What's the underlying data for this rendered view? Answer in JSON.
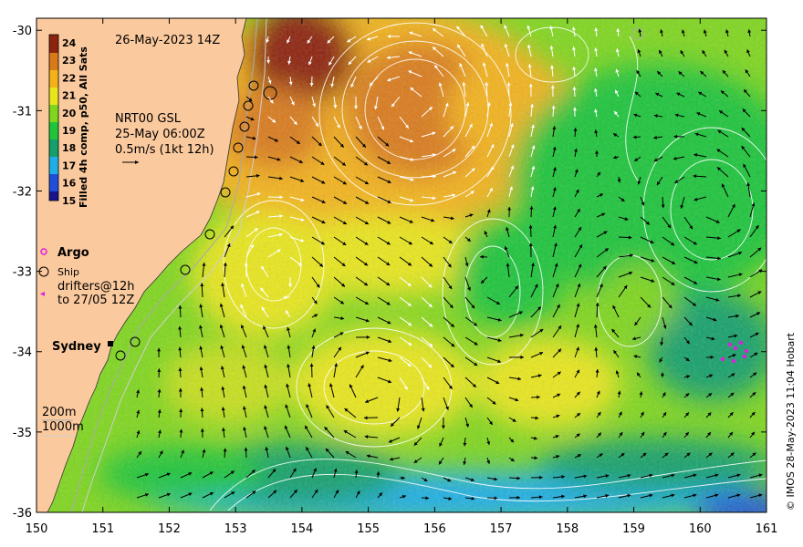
{
  "map": {
    "timestamp": "26-May-2023 14Z",
    "velocity_source": "NRT00 GSL",
    "velocity_time": "25-May 06:00Z",
    "arrow_scale": "0.5m/s (1kt 12h)",
    "legend": {
      "argo": "Argo",
      "ship": "Ship",
      "drifters_line1": "drifters@12h",
      "drifters_line2": "to 27/05 12Z"
    },
    "place_sydney": "Sydney",
    "isobath_200": "200m",
    "isobath_1000": "1000m",
    "credit": "© IMOS 28-May-2023 11:04 Hobart",
    "colorbar_title": "Filled 4h comp, p50, All Sats",
    "colorbar_ticks": [
      "24",
      "23",
      "22",
      "21",
      "20",
      "19",
      "18",
      "17",
      "16",
      "15"
    ],
    "colors": {
      "land": "#fbc99e",
      "sst_15": "#18148a",
      "sst_16": "#1f4fd9",
      "sst_17": "#1faee6",
      "sst_18": "#14a06a",
      "sst_19": "#1fc43a",
      "sst_20": "#7fd61e",
      "sst_21": "#e8e61a",
      "sst_22": "#f3b21a",
      "sst_23": "#d97a1a",
      "sst_24": "#8c2410",
      "argo": "#e01ee0",
      "drifter": "#e01ee0"
    }
  },
  "chart_data": {
    "type": "heatmap",
    "x_ticks": [
      "150",
      "151",
      "152",
      "153",
      "154",
      "155",
      "156",
      "157",
      "158",
      "159",
      "160",
      "161"
    ],
    "y_ticks": [
      "-30",
      "-31",
      "-32",
      "-33",
      "-34",
      "-35",
      "-36"
    ],
    "xlim": [
      150,
      161
    ],
    "ylim": [
      -36,
      -29.85
    ],
    "colorbar_range": [
      15,
      24
    ]
  }
}
